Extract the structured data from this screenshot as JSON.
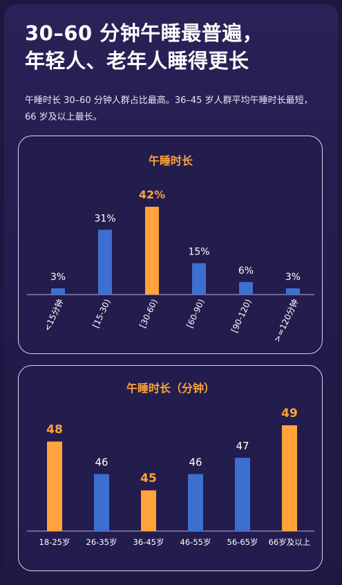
{
  "header": {
    "title_line1": "30–60 分钟午睡最普遍，",
    "title_line2": "年轻人、老年人睡得更长",
    "subtitle": "午睡时长 30–60 分钟人群占比最高。36–45 岁人群平均午睡时长最短，66 岁及以上最长。"
  },
  "colors": {
    "blue": "#3d6fd0",
    "orange": "#ffa33a",
    "background": "#231d4d"
  },
  "chart_data": [
    {
      "type": "bar",
      "title": "午睡时长",
      "categories": [
        "<15分钟",
        "[15-30)",
        "[30-60)",
        "[60-90)",
        "[90-120)",
        ">=120分钟"
      ],
      "values": [
        3,
        31,
        42,
        15,
        6,
        3
      ],
      "value_labels": [
        "3%",
        "31%",
        "42%",
        "15%",
        "6%",
        "3%"
      ],
      "highlight": [
        false,
        false,
        true,
        false,
        false,
        false
      ],
      "unit": "%",
      "ylim": [
        0,
        42
      ],
      "grid": false,
      "legend": "none"
    },
    {
      "type": "bar",
      "title": "午睡时长（分钟）",
      "categories": [
        "18-25岁",
        "26-35岁",
        "36-45岁",
        "46-55岁",
        "56-65岁",
        "66岁及以上"
      ],
      "values": [
        48,
        46,
        45,
        46,
        47,
        49
      ],
      "value_labels": [
        "48",
        "46",
        "45",
        "46",
        "47",
        "49"
      ],
      "highlight": [
        true,
        false,
        true,
        false,
        false,
        true
      ],
      "unit": "分钟",
      "ylim": [
        42.5,
        49
      ],
      "grid": false,
      "legend": "none"
    }
  ]
}
